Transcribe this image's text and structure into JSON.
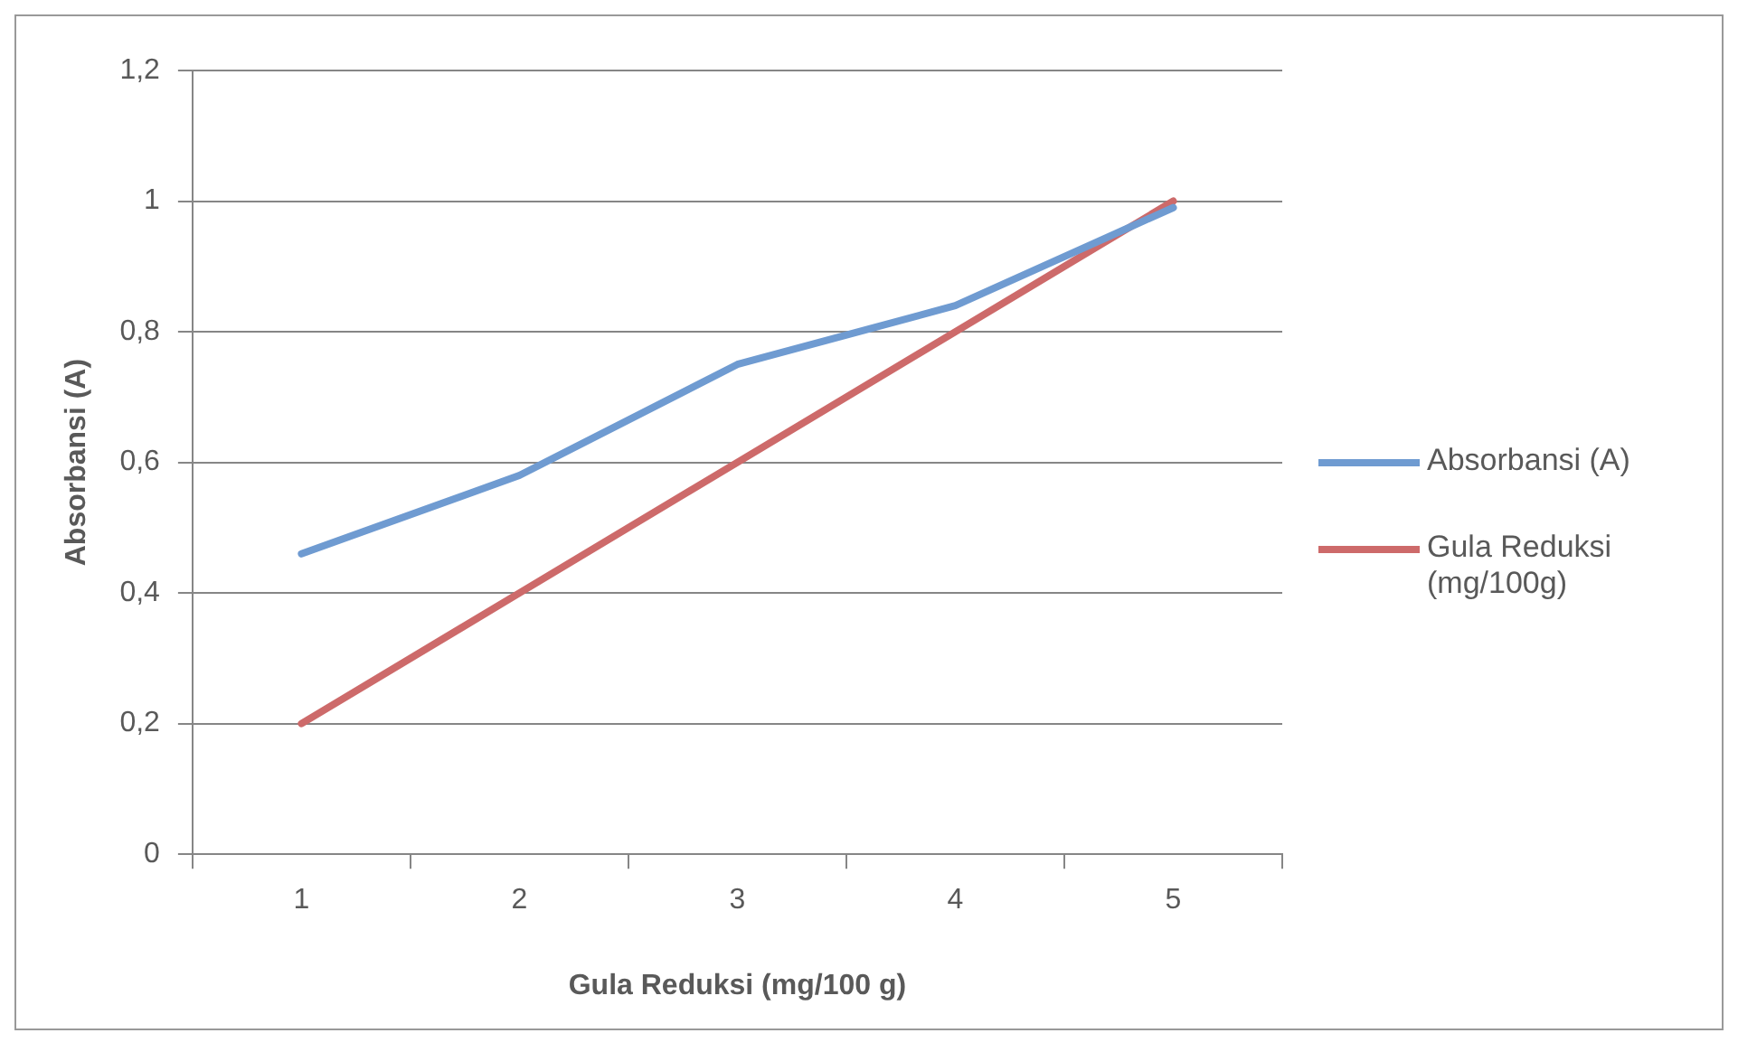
{
  "chart_data": {
    "type": "line",
    "xlabel": "Gula Reduksi (mg/100 g)",
    "ylabel": "Absorbansi (A)",
    "categories": [
      "1",
      "2",
      "3",
      "4",
      "5"
    ],
    "series": [
      {
        "name": "Absorbansi (A)",
        "color": "#6f9bd1",
        "values": [
          0.46,
          0.58,
          0.75,
          0.84,
          0.99
        ]
      },
      {
        "name": "Gula Reduksi (mg/100g)",
        "color": "#cd6a6a",
        "values": [
          0.2,
          0.4,
          0.6,
          0.8,
          1.0
        ]
      }
    ],
    "ylim": [
      0,
      1.2
    ],
    "yticks": [
      0,
      {
        "value": 0.2,
        "label": "0,2"
      },
      {
        "value": 0.4,
        "label": "0,4"
      },
      {
        "value": 0.6,
        "label": "0,6"
      },
      {
        "value": 0.8,
        "label": "0,8"
      },
      1,
      {
        "value": 1.2,
        "label": "1,2"
      }
    ],
    "grid": "y",
    "legend": "right",
    "marker": "none",
    "line_style": "solid"
  }
}
